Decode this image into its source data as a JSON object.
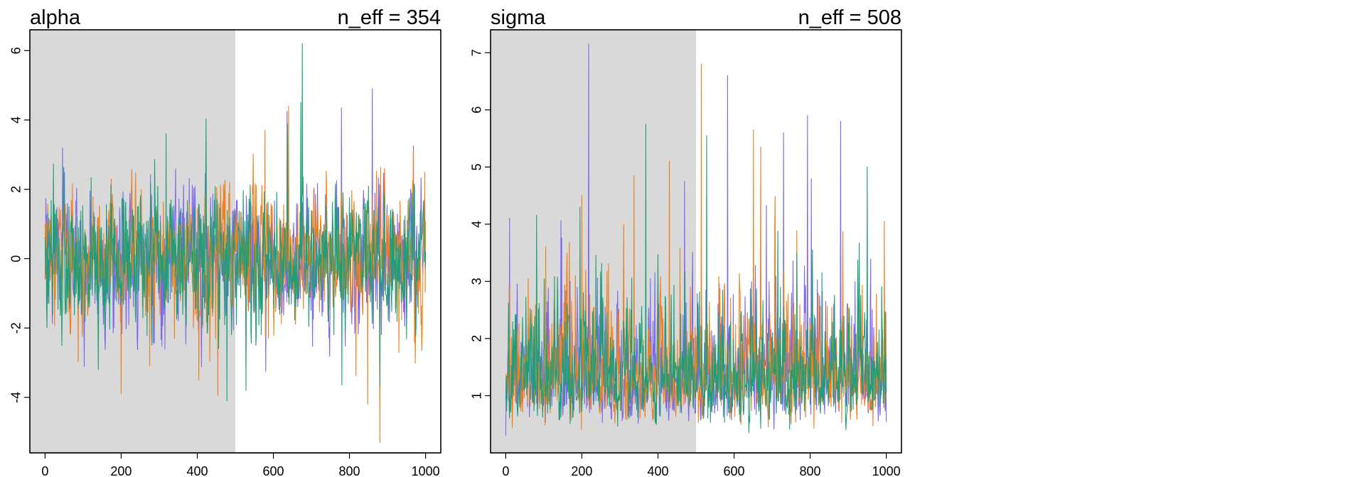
{
  "chart_data": [
    {
      "type": "line",
      "title": "alpha",
      "annotation": "n_eff = 354",
      "xlim": [
        -40,
        1040
      ],
      "ylim": [
        -5.6,
        6.6
      ],
      "warmup_end": 500,
      "xticks": [
        0,
        200,
        400,
        600,
        800,
        1000
      ],
      "xtick_labels": [
        "0",
        "200",
        "400",
        "600",
        "800",
        "1000"
      ],
      "yticks": [
        -4,
        -2,
        0,
        2,
        4,
        6
      ],
      "ytick_labels": [
        "-4",
        "-2",
        "0",
        "2",
        "4",
        "6"
      ],
      "n_iter": 1000,
      "series_colors": [
        "#7B68EE",
        "#F07F1E",
        "#1F9E77"
      ],
      "trace": {
        "center": 0.0,
        "sd": 0.95,
        "base": 0,
        "log": false
      },
      "spikes": [
        {
          "chain": 2,
          "x": 676,
          "y": 6.2
        },
        {
          "chain": 2,
          "x": 672,
          "y": 4.5
        },
        {
          "chain": 0,
          "x": 860,
          "y": 4.9
        },
        {
          "chain": 0,
          "x": 779,
          "y": 4.35
        },
        {
          "chain": 1,
          "x": 640,
          "y": 4.4
        },
        {
          "chain": 0,
          "x": 636,
          "y": 4.25
        },
        {
          "chain": 1,
          "x": 578,
          "y": 3.7
        },
        {
          "chain": 2,
          "x": 318,
          "y": 3.6
        },
        {
          "chain": 0,
          "x": 46,
          "y": 3.2
        },
        {
          "chain": 1,
          "x": 968,
          "y": 3.1
        },
        {
          "chain": 0,
          "x": 968,
          "y": 3.25
        },
        {
          "chain": 1,
          "x": 880,
          "y": -5.3
        },
        {
          "chain": 1,
          "x": 848,
          "y": -4.2
        },
        {
          "chain": 1,
          "x": 200,
          "y": -3.9
        },
        {
          "chain": 1,
          "x": 454,
          "y": -3.95
        },
        {
          "chain": 2,
          "x": 478,
          "y": -4.1
        },
        {
          "chain": 2,
          "x": 528,
          "y": -3.8
        },
        {
          "chain": 2,
          "x": 780,
          "y": -3.65
        },
        {
          "chain": 0,
          "x": 580,
          "y": -3.25
        },
        {
          "chain": 1,
          "x": 275,
          "y": -3.1
        },
        {
          "chain": 2,
          "x": 140,
          "y": -3.2
        },
        {
          "chain": 2,
          "x": 880,
          "y": -3.7
        }
      ]
    },
    {
      "type": "line",
      "title": "sigma",
      "annotation": "n_eff = 508",
      "xlim": [
        -40,
        1040
      ],
      "ylim": [
        0,
        7.4
      ],
      "warmup_end": 500,
      "xticks": [
        0,
        200,
        400,
        600,
        800,
        1000
      ],
      "xtick_labels": [
        "0",
        "200",
        "400",
        "600",
        "800",
        "1000"
      ],
      "yticks": [
        1,
        2,
        3,
        4,
        5,
        6,
        7
      ],
      "ytick_labels": [
        "1",
        "2",
        "3",
        "4",
        "5",
        "6",
        "7"
      ],
      "n_iter": 1000,
      "series_colors": [
        "#7B68EE",
        "#F07F1E",
        "#1F9E77"
      ],
      "trace": {
        "center": 0.3,
        "sd": 0.38,
        "base": 0,
        "log": true
      },
      "spikes": [
        {
          "chain": 0,
          "x": 218,
          "y": 7.15
        },
        {
          "chain": 1,
          "x": 514,
          "y": 6.8
        },
        {
          "chain": 0,
          "x": 583,
          "y": 6.6
        },
        {
          "chain": 0,
          "x": 793,
          "y": 5.9
        },
        {
          "chain": 0,
          "x": 880,
          "y": 5.8
        },
        {
          "chain": 2,
          "x": 368,
          "y": 5.75
        },
        {
          "chain": 1,
          "x": 651,
          "y": 5.65
        },
        {
          "chain": 0,
          "x": 730,
          "y": 5.6
        },
        {
          "chain": 1,
          "x": 670,
          "y": 5.35
        },
        {
          "chain": 2,
          "x": 528,
          "y": 5.55
        },
        {
          "chain": 1,
          "x": 430,
          "y": 5.1
        },
        {
          "chain": 2,
          "x": 950,
          "y": 5.0
        },
        {
          "chain": 1,
          "x": 337,
          "y": 4.85
        },
        {
          "chain": 0,
          "x": 470,
          "y": 4.75
        },
        {
          "chain": 2,
          "x": 195,
          "y": 4.3
        },
        {
          "chain": 1,
          "x": 200,
          "y": 4.5
        },
        {
          "chain": 0,
          "x": 10,
          "y": 4.1
        },
        {
          "chain": 1,
          "x": 995,
          "y": 4.05
        },
        {
          "chain": 0,
          "x": 0,
          "y": 0.3
        },
        {
          "chain": 0,
          "x": 803,
          "y": 4.8
        },
        {
          "chain": 2,
          "x": 765,
          "y": 3.5
        }
      ]
    }
  ]
}
